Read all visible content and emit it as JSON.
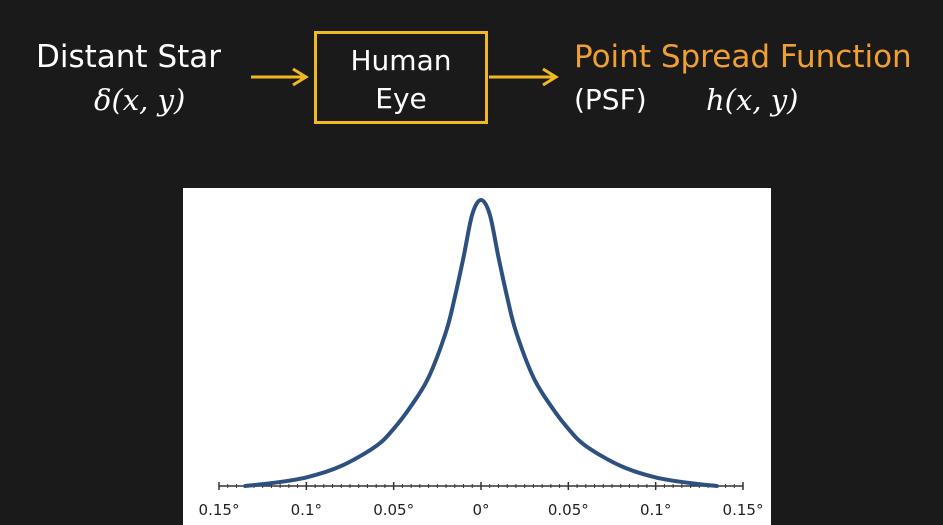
{
  "diagram": {
    "input": {
      "title": "Distant Star",
      "function": "δ(x, y)"
    },
    "system": {
      "line1": "Human",
      "line2": "Eye"
    },
    "output": {
      "title": "Point Spread Function",
      "abbrev": "(PSF)",
      "function": "h(x, y)"
    },
    "colors": {
      "background": "#1a1a1a",
      "accent_box": "#f2b824",
      "output_title": "#f0a033",
      "curve": "#2d5080",
      "text": "#ffffff"
    }
  },
  "chart_data": {
    "type": "line",
    "x_tick_labels": [
      "0.15°",
      "0.1°",
      "0.05°",
      "0°",
      "0.05°",
      "0.1°",
      "0.15°"
    ],
    "x_tick_values": [
      -0.15,
      -0.1,
      -0.05,
      0,
      0.05,
      0.1,
      0.15
    ],
    "xlim": [
      -0.15,
      0.15
    ],
    "ylim": [
      0,
      1
    ],
    "x": [
      -0.135,
      -0.12,
      -0.1,
      -0.08,
      -0.06,
      -0.05,
      -0.04,
      -0.03,
      -0.02,
      -0.015,
      -0.01,
      -0.005,
      0,
      0.005,
      0.01,
      0.015,
      0.02,
      0.03,
      0.04,
      0.05,
      0.06,
      0.08,
      0.1,
      0.12,
      0.135
    ],
    "y": [
      0.0,
      0.01,
      0.03,
      0.07,
      0.14,
      0.2,
      0.28,
      0.38,
      0.54,
      0.66,
      0.8,
      0.95,
      1.0,
      0.95,
      0.8,
      0.66,
      0.54,
      0.38,
      0.28,
      0.2,
      0.14,
      0.07,
      0.03,
      0.01,
      0.0
    ],
    "grid": false,
    "title": "",
    "xlabel": "",
    "ylabel": ""
  }
}
